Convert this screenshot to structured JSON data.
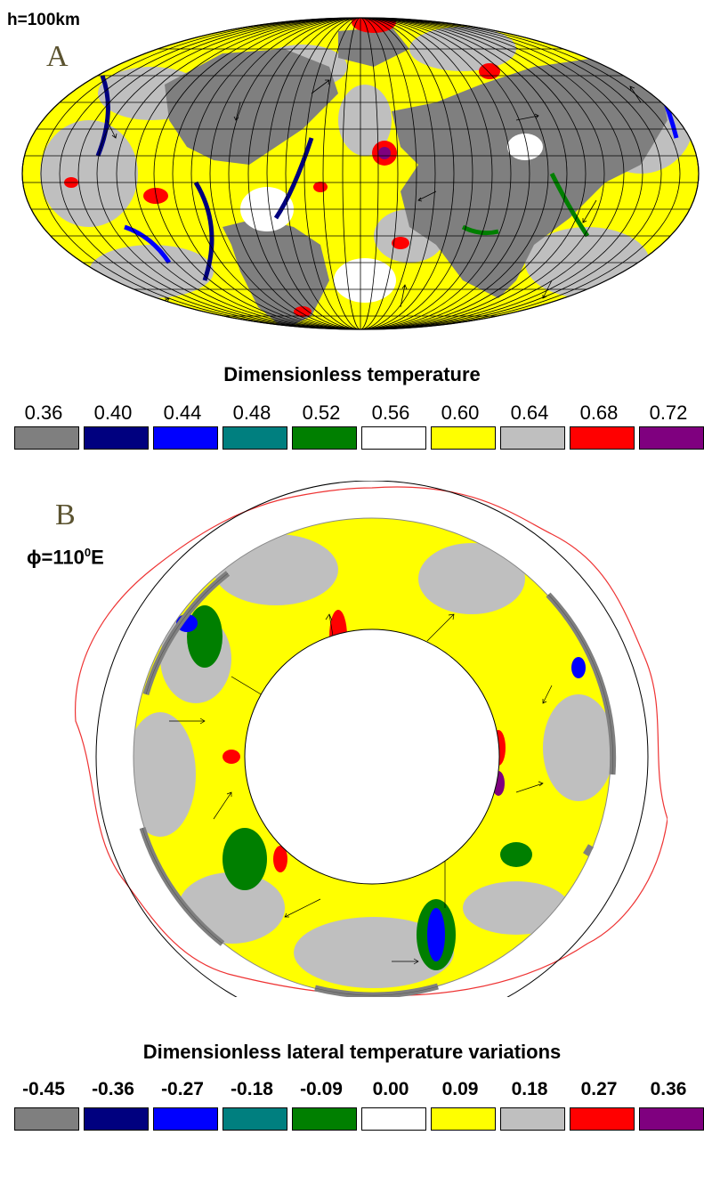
{
  "panel_a": {
    "letter": "A",
    "depth_label": "h=100km",
    "legend_title": "Dimensionless temperature",
    "ticks": [
      "0.36",
      "0.40",
      "0.44",
      "0.48",
      "0.52",
      "0.56",
      "0.60",
      "0.64",
      "0.68",
      "0.72"
    ]
  },
  "panel_b": {
    "letter": "B",
    "phi_label": "ϕ=110",
    "phi_sup": "0",
    "phi_unit": "E",
    "legend_title": "Dimensionless lateral temperature variations",
    "ticks": [
      "-0.45",
      "-0.36",
      "-0.27",
      "-0.18",
      "-0.09",
      "0.00",
      "0.09",
      "0.18",
      "0.27",
      "0.36"
    ]
  },
  "colors": [
    "#7f7f7f",
    "#00007f",
    "#0000ff",
    "#007f7f",
    "#007f00",
    "#ffffff",
    "#ffff00",
    "#bfbfbf",
    "#ff0000",
    "#7f007f"
  ]
}
